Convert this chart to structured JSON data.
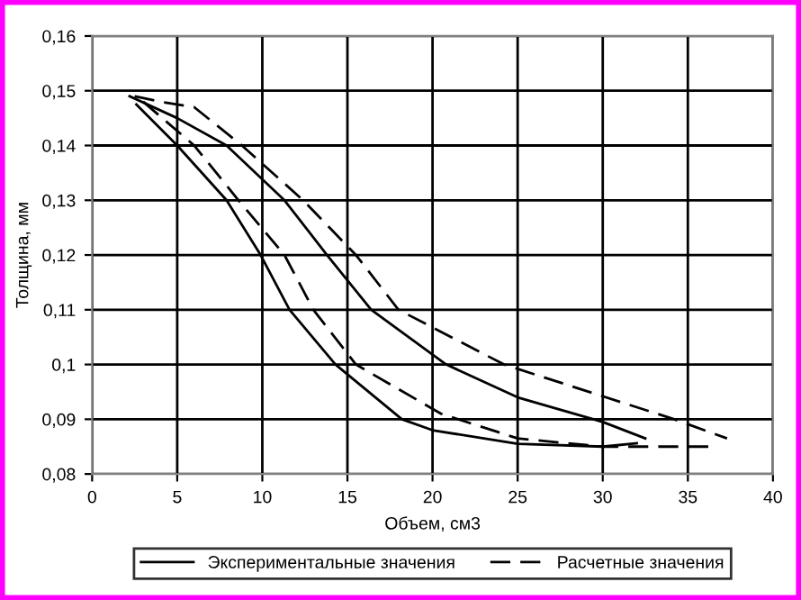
{
  "chart_data": {
    "type": "line",
    "xlabel": "Объем, см3",
    "ylabel": "Толщина, мм",
    "xlim": [
      0,
      40
    ],
    "ylim": [
      0.08,
      0.16
    ],
    "xticks": [
      0,
      5,
      10,
      15,
      20,
      25,
      30,
      35,
      40
    ],
    "yticks": [
      {
        "value": 0.08,
        "label": "0,08"
      },
      {
        "value": 0.09,
        "label": "0,09"
      },
      {
        "value": 0.1,
        "label": "0,1"
      },
      {
        "value": 0.11,
        "label": "0,11"
      },
      {
        "value": 0.12,
        "label": "0,12"
      },
      {
        "value": 0.13,
        "label": "0,13"
      },
      {
        "value": 0.14,
        "label": "0,14"
      },
      {
        "value": 0.15,
        "label": "0,15"
      },
      {
        "value": 0.16,
        "label": "0,16"
      }
    ],
    "grid": true,
    "legend": "bottom",
    "marker": "none",
    "series": [
      {
        "name": "Экспериментальные значения",
        "color": "#000000",
        "line_style": "solid",
        "x": [
          2.2,
          5,
          7.9,
          11.3,
          13.8,
          16.4,
          20.8,
          25,
          30,
          32.5
        ],
        "values": [
          0.149,
          0.145,
          0.14,
          0.13,
          0.12,
          0.11,
          0.1,
          0.094,
          0.0895,
          0.0865
        ]
      },
      {
        "color": "#000000",
        "line_style": "solid",
        "x": [
          2.6,
          5,
          7.9,
          9.9,
          11.6,
          14.3,
          18.2,
          20,
          25,
          30,
          32
        ],
        "values": [
          0.1475,
          0.14,
          0.13,
          0.12,
          0.11,
          0.1,
          0.09,
          0.088,
          0.0855,
          0.085,
          0.0856
        ]
      },
      {
        "name": "Расчетные значения",
        "color": "#000000",
        "line_style": "dashed",
        "x": [
          2.5,
          4,
          6,
          8.8,
          12.4,
          15.5,
          18,
          24.2,
          34.2,
          37.3
        ],
        "values": [
          0.149,
          0.148,
          0.147,
          0.14,
          0.13,
          0.12,
          0.11,
          0.1,
          0.09,
          0.0865
        ]
      },
      {
        "color": "#000000",
        "line_style": "dashed",
        "x": [
          3,
          6,
          8.6,
          11.3,
          13,
          15.5,
          20.5,
          25,
          30,
          36.5
        ],
        "values": [
          0.148,
          0.14,
          0.13,
          0.12,
          0.11,
          0.1,
          0.091,
          0.0865,
          0.085,
          0.085
        ]
      }
    ]
  }
}
